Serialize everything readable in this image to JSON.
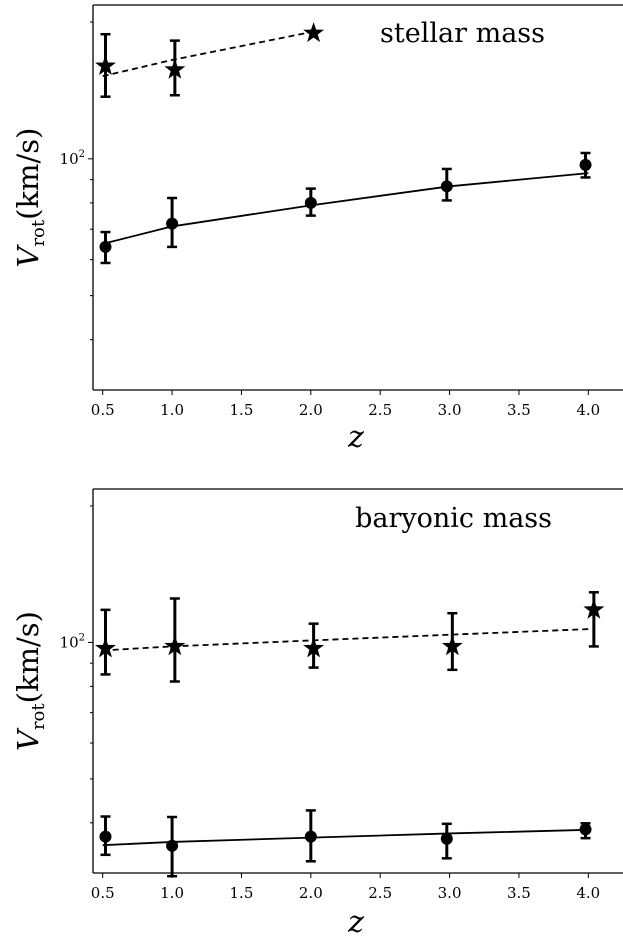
{
  "chart_data": [
    {
      "type": "line",
      "annotation": "stellar mass",
      "xlabel": "z",
      "ylabel_main": "V",
      "ylabel_sub": "rot",
      "ylabel_units": "(km/s)",
      "yscale": "log",
      "xlim": [
        0.43,
        4.25
      ],
      "ylim": [
        31,
        218
      ],
      "xticks": [
        0.5,
        1.0,
        1.5,
        2.0,
        2.5,
        3.0,
        3.5,
        4.0
      ],
      "xtick_labels": [
        "0.5",
        "1.0",
        "1.5",
        "2.0",
        "2.5",
        "3.0",
        "3.5",
        "4.0"
      ],
      "yticks_major": [
        {
          "value": 100,
          "base": "10",
          "exp": "2"
        }
      ],
      "yticks_minor": [
        40,
        50,
        60,
        70,
        80,
        90,
        200
      ],
      "grid": false,
      "series": [
        {
          "style": "dashed",
          "marker": "star",
          "line": {
            "x": [
              0.5,
              1.0,
              2.0
            ],
            "y": [
              152,
              165,
              190
            ]
          },
          "points": {
            "x": [
              0.52,
              1.02,
              2.02
            ],
            "y": [
              160,
              157,
              189
            ]
          },
          "yerr_low": [
            137,
            138,
            null
          ],
          "yerr_high": [
            188,
            182,
            null
          ]
        },
        {
          "style": "solid",
          "marker": "circle",
          "line": {
            "x": [
              0.5,
              1.0,
              2.0,
              3.0,
              4.0
            ],
            "y": [
              65,
              71,
              79,
              87,
              93
            ]
          },
          "points": {
            "x": [
              0.52,
              1.0,
              2.0,
              2.98,
              3.98
            ],
            "y": [
              64,
              72,
              80,
              87,
              97
            ]
          },
          "yerr_low": [
            59,
            64,
            75,
            81,
            91
          ],
          "yerr_high": [
            69,
            82,
            86,
            95,
            103
          ]
        }
      ]
    },
    {
      "type": "line",
      "annotation": "baryonic mass",
      "xlabel": "z",
      "ylabel_main": "V",
      "ylabel_sub": "rot",
      "ylabel_units": "(km/s)",
      "yscale": "log",
      "xlim": [
        0.43,
        4.25
      ],
      "ylim": [
        31,
        218
      ],
      "xticks": [
        0.5,
        1.0,
        1.5,
        2.0,
        2.5,
        3.0,
        3.5,
        4.0
      ],
      "xtick_labels": [
        "0.5",
        "1.0",
        "1.5",
        "2.0",
        "2.5",
        "3.0",
        "3.5",
        "4.0"
      ],
      "yticks_major": [
        {
          "value": 100,
          "base": "10",
          "exp": "2"
        }
      ],
      "yticks_minor": [
        40,
        50,
        60,
        70,
        80,
        90,
        200
      ],
      "grid": false,
      "series": [
        {
          "style": "dashed",
          "marker": "star",
          "line": {
            "x": [
              0.5,
              1.0,
              2.0,
              3.0,
              4.0
            ],
            "y": [
              96,
              98,
              101,
              104,
              107
            ]
          },
          "points": {
            "x": [
              0.52,
              1.02,
              2.02,
              3.02,
              4.04
            ],
            "y": [
              97,
              98,
              97,
              98,
              118
            ]
          },
          "yerr_low": [
            85,
            82,
            88,
            87,
            98
          ],
          "yerr_high": [
            118,
            125,
            110,
            116,
            129
          ]
        },
        {
          "style": "solid",
          "marker": "circle",
          "line": {
            "x": [
              0.5,
              1.0,
              2.0,
              3.0,
              4.0
            ],
            "y": [
              35.7,
              36.3,
              37.1,
              37.9,
              38.6
            ]
          },
          "points": {
            "x": [
              0.52,
              1.0,
              2.0,
              2.98,
              3.98
            ],
            "y": [
              37.3,
              35.6,
              37.3,
              36.9,
              38.7
            ]
          },
          "yerr_low": [
            34.0,
            30.5,
            32.9,
            33.4,
            37.0
          ],
          "yerr_high": [
            41.3,
            41.2,
            42.6,
            39.8,
            39.9
          ]
        }
      ]
    }
  ]
}
